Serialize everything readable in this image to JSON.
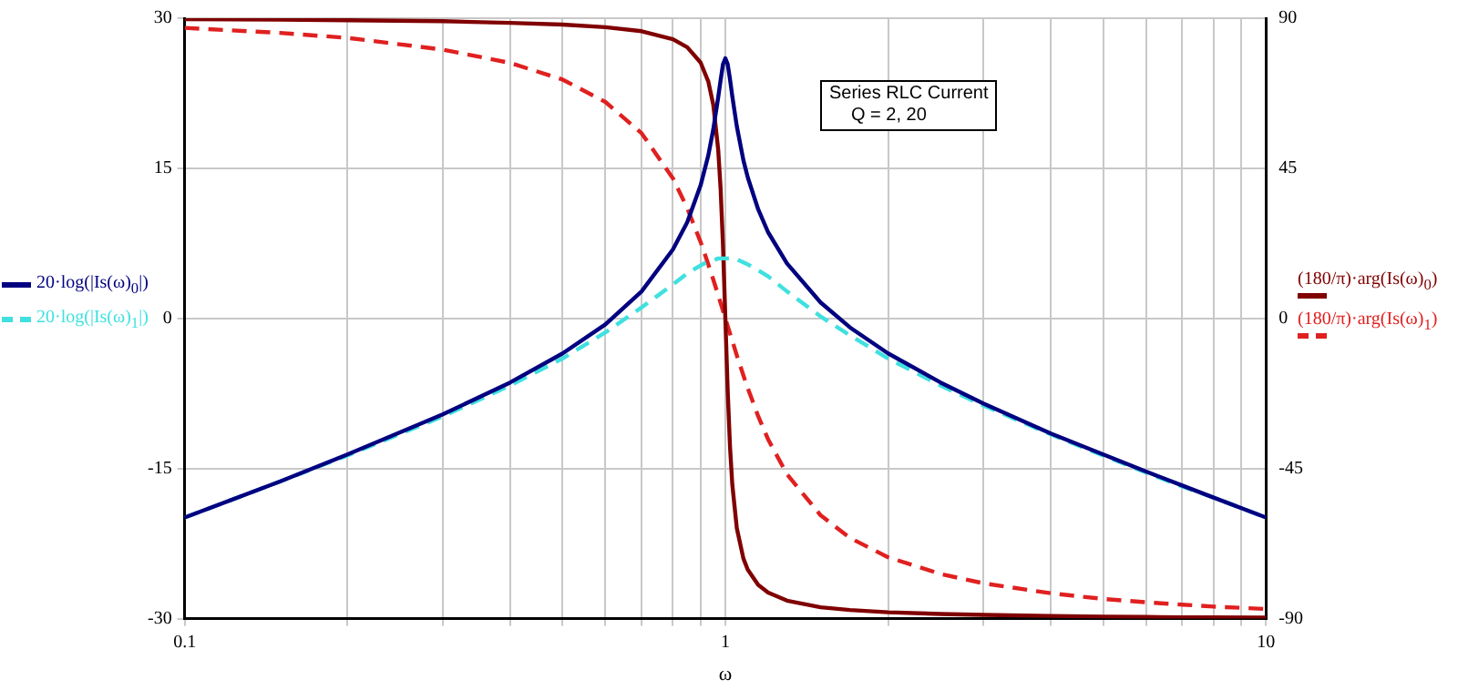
{
  "chart_data": {
    "type": "line",
    "xlabel": "ω",
    "log": "x",
    "grid": true,
    "legend": "left",
    "marker": "none",
    "annotations": [
      "Series RLC Current",
      "Q = 2, 20"
    ],
    "xlim": [
      0.1,
      10
    ],
    "xticks": [
      0.1,
      {
        "value": 0.2,
        "label": null
      },
      {
        "value": 0.3,
        "label": null
      },
      {
        "value": 0.4,
        "label": null
      },
      {
        "value": 0.5,
        "label": null
      },
      {
        "value": 0.6,
        "label": null
      },
      {
        "value": 0.7,
        "label": null
      },
      {
        "value": 0.8,
        "label": null
      },
      {
        "value": 0.9,
        "label": null
      },
      1,
      {
        "value": 2,
        "label": null
      },
      {
        "value": 3,
        "label": null
      },
      {
        "value": 4,
        "label": null
      },
      {
        "value": 5,
        "label": null
      },
      {
        "value": 6,
        "label": null
      },
      {
        "value": 7,
        "label": null
      },
      {
        "value": 8,
        "label": null
      },
      {
        "value": 9,
        "label": null
      },
      10
    ],
    "ylim": [
      -30,
      30
    ],
    "yticks": [
      -30,
      -15,
      0,
      15,
      30
    ],
    "y2lim": [
      -90,
      90
    ],
    "y2ticks": [
      -90,
      -45,
      0,
      45,
      90
    ],
    "x": [
      0.1,
      0.15,
      0.2,
      0.3,
      0.4,
      0.5,
      0.6,
      0.7,
      0.8,
      0.85,
      0.9,
      0.93,
      0.95,
      0.97,
      0.98,
      0.99,
      1,
      1.01,
      1.02,
      1.03,
      1.05,
      1.08,
      1.1,
      1.15,
      1.2,
      1.3,
      1.5,
      1.7,
      2,
      2.5,
      3,
      4,
      5,
      6,
      7,
      8,
      10
    ],
    "series": [
      {
        "name": "20·log(|Is(ω)$_{0}$|)",
        "color": "#000080",
        "line_style": "solid",
        "values": [
          -19.9,
          -16.3,
          -13.6,
          -9.6,
          -6.4,
          -3.5,
          -0.6,
          2.7,
          6.9,
          9.6,
          13.3,
          16.3,
          18.9,
          22.1,
          23.8,
          25.4,
          26.0,
          25.4,
          23.9,
          22.2,
          19.2,
          15.8,
          14.1,
          10.9,
          8.6,
          5.5,
          1.6,
          -0.9,
          -3.5,
          -6.4,
          -8.5,
          -11.5,
          -13.6,
          -15.3,
          -16.7,
          -17.9,
          -19.9
        ]
      },
      {
        "name": "20·log(|Is(ω)$_{1}$|)",
        "color": "#40e0e0",
        "line_style": "dashed",
        "values": [
          -19.9,
          -16.3,
          -13.7,
          -9.8,
          -6.7,
          -4.0,
          -1.4,
          1.1,
          3.4,
          4.5,
          5.3,
          5.7,
          5.8,
          6.0,
          6.0,
          6.0,
          6.0,
          6.0,
          6.0,
          6.0,
          5.9,
          5.6,
          5.4,
          4.8,
          4.2,
          2.7,
          0.2,
          -1.7,
          -4.0,
          -6.7,
          -8.7,
          -11.6,
          -13.7,
          -15.4,
          -16.8,
          -17.9,
          -19.9
        ]
      },
      {
        "name": "(180/π)·arg(Is(ω)$_{0}$)",
        "color": "#800000",
        "line_style": "solid",
        "axis": "y2",
        "values": [
          89.7,
          89.6,
          89.4,
          89.1,
          88.6,
          88.1,
          87.3,
          86.1,
          83.7,
          81.3,
          76.7,
          71.0,
          64.0,
          50.6,
          38.9,
          21.9,
          0,
          -21.7,
          -38.4,
          -49.8,
          -62.9,
          -72.0,
          -75.3,
          -79.9,
          -82.2,
          -84.6,
          -86.6,
          -87.4,
          -88.1,
          -88.6,
          -88.9,
          -89.2,
          -89.4,
          -89.5,
          -89.6,
          -89.6,
          -89.7
        ]
      },
      {
        "name": "(180/π)·arg(Is(ω)$_{1}$)",
        "color": "#e02020",
        "line_style": "dashed",
        "axis": "y2",
        "values": [
          87.1,
          85.6,
          84.1,
          80.6,
          76.6,
          71.6,
          64.9,
          55.5,
          42.0,
          33.1,
          22.9,
          16.2,
          11.6,
          7.0,
          4.6,
          2.3,
          0,
          -2.3,
          -4.5,
          -6.7,
          -11.1,
          -17.1,
          -20.9,
          -29.3,
          -36.3,
          -46.7,
          -59.0,
          -65.8,
          -71.6,
          -76.6,
          -79.4,
          -82.4,
          -84.1,
          -85.1,
          -85.8,
          -86.4,
          -87.1
        ]
      }
    ]
  }
}
